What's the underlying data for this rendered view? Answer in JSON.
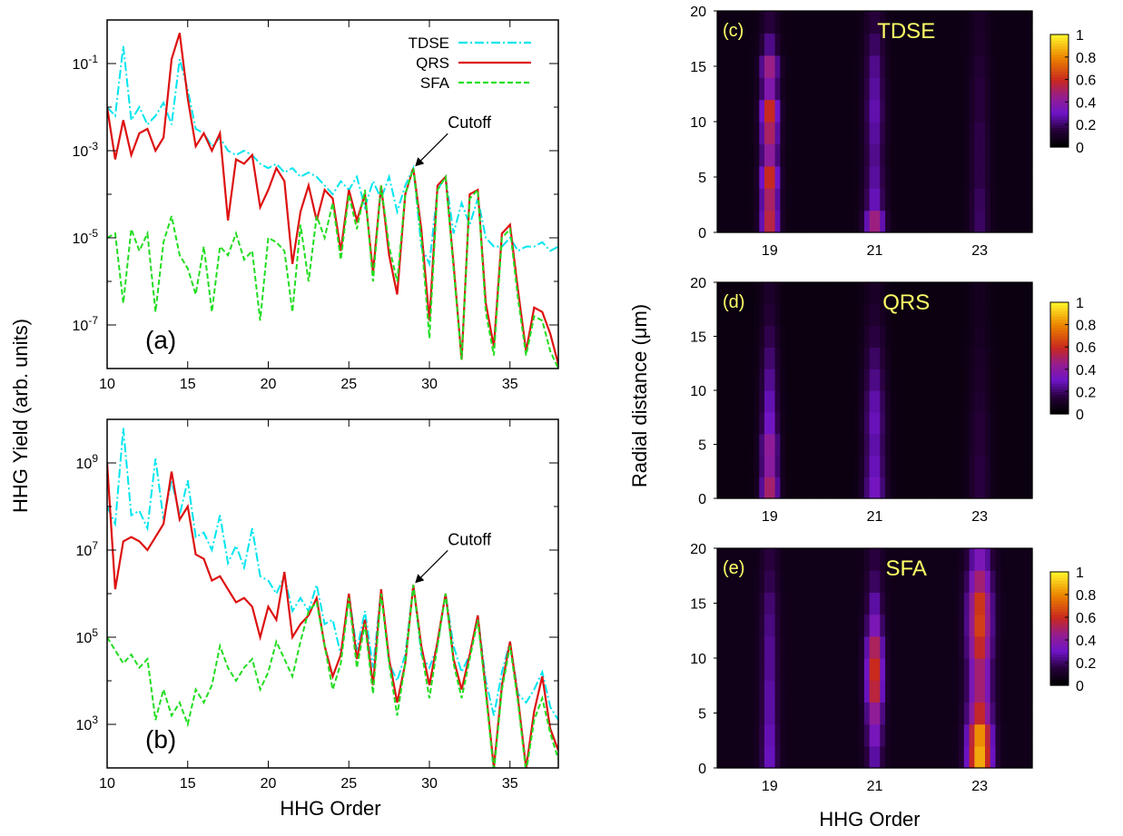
{
  "chart_data": [
    {
      "id": "a",
      "type": "line",
      "panel_label": "(a)",
      "xlim": [
        10,
        38
      ],
      "ylim_log10": [
        -8,
        0
      ],
      "y_scale": "log",
      "x_ticks": [
        10,
        15,
        20,
        25,
        30,
        35
      ],
      "y_ticks": [
        "10-1",
        "10-3",
        "10-5",
        "10-7"
      ],
      "y_tick_exponents": [
        -1,
        -3,
        -5,
        -7
      ],
      "legend": {
        "position": "top-right"
      },
      "annotation": {
        "text": "Cutoff",
        "x": 29,
        "log10_y": -3.4
      },
      "series": [
        {
          "name": "TDSE",
          "color": "#00e5ee",
          "dash": "10,3,2,3",
          "x": [
            10,
            10.5,
            11,
            11.5,
            12,
            12.5,
            13,
            13.5,
            14,
            14.5,
            15,
            15.5,
            16,
            16.5,
            17,
            17.5,
            18,
            18.5,
            19,
            19.5,
            20,
            20.5,
            21,
            21.5,
            22,
            22.5,
            23,
            23.5,
            24,
            24.5,
            25,
            25.5,
            26,
            26.5,
            27,
            27.5,
            28,
            28.5,
            29,
            29.5,
            30,
            30.5,
            31,
            31.5,
            32,
            32.5,
            33,
            33.5,
            34,
            34.5,
            35,
            35.5,
            36,
            36.5,
            37,
            37.5,
            38
          ],
          "log10_y": [
            -2.0,
            -2.2,
            -0.6,
            -2.3,
            -2.0,
            -2.4,
            -2.2,
            -1.9,
            -2.4,
            -0.9,
            -1.6,
            -2.5,
            -2.6,
            -2.9,
            -2.7,
            -3.0,
            -3.1,
            -3.0,
            -3.1,
            -3.3,
            -3.4,
            -3.3,
            -3.5,
            -3.4,
            -3.6,
            -3.5,
            -3.6,
            -3.8,
            -4.0,
            -3.7,
            -3.9,
            -3.6,
            -4.3,
            -3.7,
            -4.1,
            -3.6,
            -4.4,
            -3.8,
            -3.4,
            -5.2,
            -5.6,
            -3.9,
            -3.6,
            -4.9,
            -4.2,
            -4.7,
            -4.1,
            -5.0,
            -5.2,
            -5.2,
            -5.0,
            -5.3,
            -5.2,
            -5.2,
            -5.1,
            -5.3,
            -5.2
          ]
        },
        {
          "name": "QRS",
          "color": "#dd1111",
          "dash": "",
          "x": [
            10,
            10.5,
            11,
            11.5,
            12,
            12.5,
            13,
            13.5,
            14,
            14.5,
            15,
            15.5,
            16,
            16.5,
            17,
            17.5,
            18,
            18.5,
            19,
            19.5,
            20,
            20.5,
            21,
            21.5,
            22,
            22.5,
            23,
            23.5,
            24,
            24.5,
            25,
            25.5,
            26,
            26.5,
            27,
            27.5,
            28,
            28.5,
            29,
            29.5,
            30,
            30.5,
            31,
            31.5,
            32,
            32.5,
            33,
            33.5,
            34,
            34.5,
            35,
            35.5,
            36,
            36.5,
            37,
            37.5,
            38
          ],
          "log10_y": [
            -2.0,
            -3.2,
            -2.3,
            -3.1,
            -2.6,
            -2.5,
            -3.0,
            -2.7,
            -0.9,
            -0.3,
            -1.8,
            -2.9,
            -2.6,
            -3.0,
            -2.6,
            -4.6,
            -3.2,
            -3.3,
            -3.1,
            -4.3,
            -3.9,
            -3.4,
            -3.7,
            -5.6,
            -4.4,
            -3.8,
            -4.6,
            -3.9,
            -4.1,
            -5.3,
            -3.9,
            -4.6,
            -4.0,
            -5.8,
            -3.8,
            -5.4,
            -6.3,
            -4.0,
            -3.4,
            -4.8,
            -6.9,
            -3.8,
            -3.6,
            -5.6,
            -7.8,
            -4.0,
            -3.9,
            -6.5,
            -7.5,
            -4.9,
            -4.7,
            -6.2,
            -7.6,
            -6.6,
            -6.7,
            -7.2,
            -7.9
          ]
        },
        {
          "name": "SFA",
          "color": "#22dd22",
          "dash": "6,3",
          "x": [
            10,
            10.5,
            11,
            11.5,
            12,
            12.5,
            13,
            13.5,
            14,
            14.5,
            15,
            15.5,
            16,
            16.5,
            17,
            17.5,
            18,
            18.5,
            19,
            19.5,
            20,
            20.5,
            21,
            21.5,
            22,
            22.5,
            23,
            23.5,
            24,
            24.5,
            25,
            25.5,
            26,
            26.5,
            27,
            27.5,
            28,
            28.5,
            29,
            29.5,
            30,
            30.5,
            31,
            31.5,
            32,
            32.5,
            33,
            33.5,
            34,
            34.5,
            35,
            35.5,
            36,
            36.5,
            37,
            37.5,
            38
          ],
          "log10_y": [
            -5.0,
            -4.9,
            -6.5,
            -4.8,
            -5.3,
            -4.9,
            -6.7,
            -5.1,
            -4.5,
            -5.4,
            -5.7,
            -6.3,
            -5.2,
            -6.7,
            -5.2,
            -5.4,
            -4.9,
            -5.5,
            -5.3,
            -6.9,
            -5.0,
            -5.1,
            -5.3,
            -6.7,
            -4.7,
            -6.0,
            -4.5,
            -5.0,
            -4.2,
            -5.5,
            -4.0,
            -4.8,
            -3.9,
            -6.0,
            -3.8,
            -5.2,
            -6.0,
            -4.0,
            -3.4,
            -5.0,
            -7.3,
            -3.9,
            -3.6,
            -5.7,
            -7.8,
            -4.1,
            -3.9,
            -6.7,
            -7.7,
            -5.0,
            -4.8,
            -6.4,
            -7.7,
            -6.8,
            -6.9,
            -7.6,
            -8.0
          ]
        }
      ]
    },
    {
      "id": "b",
      "type": "line",
      "panel_label": "(b)",
      "xlim": [
        10,
        38
      ],
      "ylim_log10": [
        2,
        10
      ],
      "y_scale": "log",
      "x_ticks": [
        10,
        15,
        20,
        25,
        30,
        35
      ],
      "y_ticks": [
        "109",
        "107",
        "105",
        "103"
      ],
      "y_tick_exponents": [
        9,
        7,
        5,
        3
      ],
      "annotation": {
        "text": "Cutoff",
        "x": 29,
        "log10_y": 6.2
      },
      "series": [
        {
          "name": "TDSE",
          "color": "#00e5ee",
          "dash": "10,3,2,3",
          "x": [
            10,
            10.5,
            11,
            11.5,
            12,
            12.5,
            13,
            13.5,
            14,
            14.5,
            15,
            15.5,
            16,
            16.5,
            17,
            17.5,
            18,
            18.5,
            19,
            19.5,
            20,
            20.5,
            21,
            21.5,
            22,
            22.5,
            23,
            23.5,
            24,
            24.5,
            25,
            25.5,
            26,
            26.5,
            27,
            27.5,
            28,
            28.5,
            29,
            29.5,
            30,
            30.5,
            31,
            31.5,
            32,
            32.5,
            33,
            33.5,
            34,
            34.5,
            35,
            35.5,
            36,
            36.5,
            37,
            37.5,
            38
          ],
          "log10_y": [
            8.0,
            7.6,
            9.8,
            7.8,
            7.9,
            7.5,
            9.1,
            7.7,
            8.6,
            7.8,
            8.6,
            7.3,
            7.4,
            7.0,
            7.8,
            6.7,
            7.1,
            6.6,
            7.5,
            6.4,
            6.3,
            6.0,
            6.4,
            5.6,
            5.9,
            5.6,
            6.2,
            5.3,
            5.4,
            4.6,
            6.0,
            4.7,
            5.6,
            4.3,
            6.1,
            4.4,
            4.0,
            4.6,
            6.2,
            4.6,
            4.3,
            4.8,
            6.0,
            4.8,
            4.2,
            4.6,
            5.5,
            4.0,
            3.2,
            4.2,
            4.9,
            3.7,
            3.5,
            3.8,
            4.2,
            3.4,
            3.1
          ]
        },
        {
          "name": "QRS",
          "color": "#dd1111",
          "dash": "",
          "x": [
            10,
            10.5,
            11,
            11.5,
            12,
            12.5,
            13,
            13.5,
            14,
            14.5,
            15,
            15.5,
            16,
            16.5,
            17,
            17.5,
            18,
            18.5,
            19,
            19.5,
            20,
            20.5,
            21,
            21.5,
            22,
            22.5,
            23,
            23.5,
            24,
            24.5,
            25,
            25.5,
            26,
            26.5,
            27,
            27.5,
            28,
            28.5,
            29,
            29.5,
            30,
            30.5,
            31,
            31.5,
            32,
            32.5,
            33,
            33.5,
            34,
            34.5,
            35,
            35.5,
            36,
            36.5,
            37,
            37.5,
            38
          ],
          "log10_y": [
            9.0,
            6.1,
            7.2,
            7.3,
            7.2,
            7.0,
            7.3,
            7.6,
            8.8,
            7.7,
            8.0,
            6.9,
            6.8,
            6.3,
            6.4,
            6.1,
            5.8,
            5.9,
            5.7,
            5.0,
            5.7,
            5.4,
            6.5,
            5.0,
            5.3,
            5.5,
            5.9,
            4.8,
            4.1,
            4.6,
            6.0,
            4.5,
            5.4,
            3.9,
            6.1,
            4.5,
            3.5,
            4.4,
            6.2,
            4.8,
            3.9,
            4.9,
            6.0,
            4.5,
            3.8,
            4.6,
            5.5,
            3.8,
            2.0,
            3.9,
            4.9,
            3.6,
            2.0,
            3.3,
            4.1,
            2.9,
            2.4
          ]
        },
        {
          "name": "SFA",
          "color": "#22dd22",
          "dash": "6,3",
          "x": [
            10,
            10.5,
            11,
            11.5,
            12,
            12.5,
            13,
            13.5,
            14,
            14.5,
            15,
            15.5,
            16,
            16.5,
            17,
            17.5,
            18,
            18.5,
            19,
            19.5,
            20,
            20.5,
            21,
            21.5,
            22,
            22.5,
            23,
            23.5,
            24,
            24.5,
            25,
            25.5,
            26,
            26.5,
            27,
            27.5,
            28,
            28.5,
            29,
            29.5,
            30,
            30.5,
            31,
            31.5,
            32,
            32.5,
            33,
            33.5,
            34,
            34.5,
            35,
            35.5,
            36,
            36.5,
            37,
            37.5,
            38
          ],
          "log10_y": [
            5.0,
            4.7,
            4.4,
            4.6,
            4.3,
            4.5,
            3.1,
            3.8,
            3.2,
            3.5,
            3.0,
            3.8,
            3.5,
            3.9,
            4.8,
            4.3,
            4.0,
            4.3,
            4.5,
            3.8,
            4.2,
            4.9,
            4.5,
            4.1,
            4.9,
            5.6,
            5.8,
            4.8,
            3.8,
            4.4,
            5.9,
            4.3,
            5.3,
            3.7,
            6.0,
            4.4,
            3.2,
            4.4,
            6.2,
            4.7,
            3.6,
            4.8,
            6.0,
            4.4,
            3.6,
            4.5,
            5.4,
            3.7,
            1.9,
            3.8,
            4.8,
            3.5,
            1.9,
            3.1,
            3.6,
            2.8,
            2.2
          ]
        }
      ]
    },
    {
      "id": "c",
      "type": "heatmap",
      "panel_label": "(c)",
      "title": "TDSE",
      "xlim": [
        18,
        24
      ],
      "ylim": [
        0,
        20
      ],
      "x_ticks": [
        19,
        21,
        23
      ],
      "y_ticks": [
        0,
        5,
        10,
        15,
        20
      ],
      "colorbar_ticks": [
        0,
        0.2,
        0.4,
        0.6,
        0.8,
        1
      ],
      "colorbar_tick_labels": [
        "0",
        "0.2",
        "0.4",
        "0.6",
        "0.8",
        "1"
      ],
      "peaks": [
        {
          "order": 19,
          "width": 0.16,
          "profile": [
            0.55,
            0.5,
            0.6,
            0.4,
            0.5,
            0.6,
            0.35,
            0.45,
            0.2,
            0.1
          ]
        },
        {
          "order": 21,
          "width": 0.18,
          "profile": [
            0.45,
            0.25,
            0.22,
            0.2,
            0.22,
            0.24,
            0.22,
            0.2,
            0.15,
            0.1
          ]
        },
        {
          "order": 23,
          "width": 0.18,
          "profile": [
            0.15,
            0.14,
            0.12,
            0.12,
            0.12,
            0.1,
            0.1,
            0.08,
            0.06,
            0.05
          ]
        }
      ],
      "background": 0.05
    },
    {
      "id": "d",
      "type": "heatmap",
      "panel_label": "(d)",
      "title": "QRS",
      "xlim": [
        18,
        24
      ],
      "ylim": [
        0,
        20
      ],
      "x_ticks": [
        19,
        21,
        23
      ],
      "y_ticks": [
        0,
        5,
        10,
        15,
        20
      ],
      "colorbar_ticks": [
        0,
        0.2,
        0.4,
        0.6,
        0.8,
        1
      ],
      "colorbar_tick_labels": [
        "0",
        "0.2",
        "0.4",
        "0.6",
        "0.8",
        "1"
      ],
      "peaks": [
        {
          "order": 19,
          "width": 0.16,
          "profile": [
            0.5,
            0.4,
            0.42,
            0.3,
            0.26,
            0.22,
            0.18,
            0.14,
            0.1,
            0.08
          ]
        },
        {
          "order": 21,
          "width": 0.2,
          "profile": [
            0.3,
            0.26,
            0.24,
            0.26,
            0.24,
            0.2,
            0.16,
            0.12,
            0.08,
            0.06
          ]
        },
        {
          "order": 23,
          "width": 0.2,
          "profile": [
            0.12,
            0.12,
            0.1,
            0.1,
            0.08,
            0.07,
            0.06,
            0.05,
            0.04,
            0.04
          ]
        }
      ],
      "background": 0.04
    },
    {
      "id": "e",
      "type": "heatmap",
      "panel_label": "(e)",
      "title": "SFA",
      "xlim": [
        18,
        24
      ],
      "ylim": [
        0,
        20
      ],
      "x_ticks": [
        19,
        21,
        23
      ],
      "y_ticks": [
        0,
        5,
        10,
        15,
        20
      ],
      "colorbar_ticks": [
        0,
        0.2,
        0.4,
        0.6,
        0.8,
        1
      ],
      "colorbar_tick_labels": [
        "0",
        "0.2",
        "0.4",
        "0.6",
        "0.8",
        "1"
      ],
      "peaks": [
        {
          "order": 19,
          "width": 0.16,
          "profile": [
            0.25,
            0.24,
            0.22,
            0.22,
            0.2,
            0.2,
            0.18,
            0.16,
            0.12,
            0.1
          ]
        },
        {
          "order": 21,
          "width": 0.16,
          "profile": [
            0.22,
            0.3,
            0.4,
            0.55,
            0.6,
            0.5,
            0.32,
            0.22,
            0.14,
            0.1
          ]
        },
        {
          "order": 23,
          "width": 0.22,
          "profile": [
            0.85,
            0.8,
            0.55,
            0.45,
            0.45,
            0.55,
            0.62,
            0.6,
            0.45,
            0.3
          ]
        }
      ],
      "background": 0.06
    }
  ],
  "axes_labels": {
    "left_y": "HHG Yield (arb. units)",
    "left_x": "HHG Order",
    "right_y": "Radial distance (μm)",
    "right_x": "HHG Order"
  },
  "colors": {
    "cyan": "#00e5ee",
    "red": "#dd1111",
    "green": "#22dd22",
    "annotation_text": "#ffff66"
  }
}
